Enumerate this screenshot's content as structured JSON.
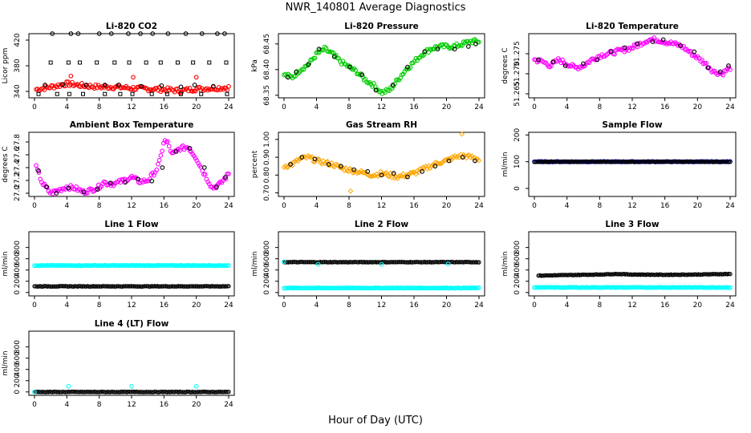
{
  "page": {
    "title": "NWR_140801  Average Diagnostics",
    "xlabel": "Hour of Day (UTC)"
  },
  "colors": {
    "black": "#000000",
    "red": "#ff0000",
    "green": "#00cc00",
    "magenta": "#ff00ff",
    "orange": "#ffa500",
    "blue": "#0000ff",
    "cyan": "#00ffff"
  },
  "chart_data": [
    {
      "type": "scatter",
      "title": "Li-820 CO2",
      "ylabel": "Licor ppm",
      "xlim": [
        0,
        24
      ],
      "ylim": [
        330,
        430
      ],
      "xticks": [
        0,
        4,
        8,
        12,
        16,
        20,
        24
      ],
      "xtick_labels": [
        "0",
        "4",
        "8",
        "12",
        "16",
        "20",
        "24"
      ],
      "yticks": [
        340,
        380,
        420
      ],
      "ytick_labels": [
        "340",
        "380",
        "420"
      ],
      "series": [
        {
          "color": "red",
          "marker": "circle",
          "dense": true,
          "x": [
            0.2,
            2,
            4,
            6,
            8,
            10,
            12,
            14,
            16,
            18,
            20,
            22,
            24
          ],
          "y": [
            343,
            347,
            352,
            349,
            347,
            347,
            345,
            344,
            343,
            341,
            344,
            345,
            346
          ]
        },
        {
          "color": "red",
          "marker": "circle",
          "x": [
            4.5,
            12.2,
            20
          ],
          "y": [
            364,
            362,
            362
          ]
        },
        {
          "color": "black",
          "marker": "circle",
          "x": [
            2.2,
            4.5,
            5.4,
            8.0,
            9.5,
            11.6,
            13.1,
            14.6,
            16.5,
            18.7,
            20.7,
            22.6,
            23.5
          ],
          "y": [
            430,
            430,
            430,
            430,
            430,
            430,
            430,
            430,
            430,
            430,
            430,
            430,
            430
          ]
        },
        {
          "color": "black",
          "marker": "square",
          "x": [
            2.0,
            4.2,
            5.6,
            7.7,
            9.9,
            11.7,
            13.8,
            15.6,
            17.7,
            19.6,
            21.6,
            23.7
          ],
          "y": [
            385,
            385,
            385,
            385,
            385,
            385,
            385,
            385,
            385,
            385,
            385,
            385
          ]
        },
        {
          "color": "black",
          "marker": "circle",
          "x": [
            1.3,
            3.5,
            6.4,
            8.7,
            10.4,
            13.2,
            15.7,
            18.1,
            19.8,
            22.1
          ],
          "y": [
            350,
            351,
            350,
            350,
            350,
            348,
            349,
            347,
            350,
            348
          ]
        },
        {
          "color": "black",
          "marker": "square",
          "x": [
            0.5,
            2.8,
            4.3,
            6.0,
            8.7,
            10.6,
            12.1,
            14.5,
            16.4,
            18.1,
            20.6,
            23.8
          ],
          "y": [
            336,
            336,
            336,
            336,
            336,
            336,
            336,
            336,
            336,
            336,
            336,
            336
          ]
        }
      ]
    },
    {
      "type": "scatter",
      "title": "Li-820 Pressure",
      "ylabel": "kPa",
      "xlim": [
        0,
        24
      ],
      "ylim": [
        68.345,
        68.47
      ],
      "xticks": [
        0,
        4,
        8,
        12,
        16,
        20,
        24
      ],
      "xtick_labels": [
        "0",
        "4",
        "8",
        "12",
        "16",
        "20",
        "24"
      ],
      "yticks": [
        68.35,
        68.4,
        68.45
      ],
      "ytick_labels": [
        "68.35",
        "68.40",
        "68.45"
      ],
      "series": [
        {
          "color": "green",
          "marker": "circle",
          "dense": true,
          "x": [
            0,
            1,
            2,
            3,
            4,
            5,
            6,
            7,
            8,
            9,
            10,
            11,
            12,
            13,
            14,
            15,
            16,
            17,
            18,
            19,
            20,
            21,
            22,
            23,
            24
          ],
          "y": [
            68.39,
            68.385,
            68.4,
            68.41,
            68.43,
            68.44,
            68.43,
            68.415,
            68.405,
            68.395,
            68.38,
            68.37,
            68.355,
            68.36,
            68.38,
            68.4,
            68.415,
            68.43,
            68.44,
            68.445,
            68.445,
            68.445,
            68.45,
            68.455,
            68.455
          ]
        },
        {
          "color": "black",
          "marker": "circle",
          "x": [
            0.5,
            1.5,
            3.0,
            4.3,
            6.2,
            8.1,
            9.6,
            11.3,
            13.4,
            15.2,
            17.3,
            18.9,
            21.0,
            22.7,
            23.6
          ],
          "y": [
            68.385,
            68.395,
            68.41,
            68.44,
            68.425,
            68.405,
            68.39,
            68.36,
            68.37,
            68.405,
            68.435,
            68.44,
            68.44,
            68.445,
            68.45
          ]
        }
      ]
    },
    {
      "type": "scatter",
      "title": "Li-820 Temperature",
      "ylabel": "degrees C",
      "xlim": [
        0,
        24
      ],
      "ylim": [
        51.264,
        51.28
      ],
      "xticks": [
        0,
        4,
        8,
        12,
        16,
        20,
        24
      ],
      "xtick_labels": [
        "0",
        "4",
        "8",
        "12",
        "16",
        "20",
        "24"
      ],
      "yticks": [
        51.265,
        51.27,
        51.275
      ],
      "ytick_labels": [
        "51.265",
        "51.270",
        "51.275"
      ],
      "series": [
        {
          "color": "magenta",
          "marker": "circle",
          "dense": true,
          "x": [
            0,
            1,
            2,
            3,
            4,
            5,
            6,
            7,
            8,
            9,
            10,
            11,
            12,
            13,
            14,
            15,
            16,
            17,
            18,
            19,
            20,
            21,
            22,
            23,
            24
          ],
          "y": [
            51.2735,
            51.273,
            51.272,
            51.2735,
            51.2725,
            51.2715,
            51.272,
            51.2735,
            51.2745,
            51.275,
            51.2755,
            51.276,
            51.2765,
            51.2775,
            51.2785,
            51.2785,
            51.278,
            51.2775,
            51.277,
            51.2755,
            51.274,
            51.2725,
            51.2705,
            51.27,
            51.2715
          ]
        },
        {
          "color": "black",
          "marker": "circle",
          "x": [
            0.5,
            2.3,
            3.8,
            6.0,
            7.7,
            9.4,
            11.1,
            12.6,
            14.5,
            15.8,
            17.9,
            19.6,
            21.3,
            22.8,
            23.8
          ],
          "y": [
            51.2735,
            51.273,
            51.272,
            51.2725,
            51.2735,
            51.2755,
            51.2765,
            51.2775,
            51.278,
            51.2785,
            51.277,
            51.2755,
            51.2715,
            51.2705,
            51.272
          ]
        }
      ]
    },
    {
      "type": "scatter",
      "title": "Ambient Box Temperature",
      "ylabel": "degrees C",
      "xlim": [
        0,
        24
      ],
      "ylim": [
        26.95,
        27.95
      ],
      "xticks": [
        0,
        4,
        8,
        12,
        16,
        20,
        24
      ],
      "xtick_labels": [
        "0",
        "4",
        "8",
        "12",
        "16",
        "20",
        "24"
      ],
      "yticks": [
        27.0,
        27.2,
        27.4,
        27.6,
        27.8
      ],
      "ytick_labels": [
        "27.0",
        "27.2",
        "27.4",
        "27.6",
        "27.8"
      ],
      "series": [
        {
          "color": "magenta",
          "marker": "circle",
          "dense": true,
          "x": [
            0.2,
            1.0,
            2.0,
            3.0,
            4.0,
            5.0,
            6.0,
            7.0,
            8.0,
            8.5,
            9.0,
            10.0,
            11.0,
            12.0,
            13.0,
            14.0,
            15.0,
            15.5,
            16.0,
            16.5,
            17.0,
            18.0,
            19.0,
            20.0,
            21.0,
            22.0,
            23.0,
            24.0
          ],
          "y": [
            27.4,
            27.15,
            27.0,
            27.05,
            27.1,
            27.08,
            27.02,
            27.05,
            27.1,
            27.18,
            27.15,
            27.15,
            27.2,
            27.25,
            27.18,
            27.2,
            27.35,
            27.5,
            27.82,
            27.78,
            27.6,
            27.7,
            27.72,
            27.55,
            27.3,
            27.08,
            27.15,
            27.3
          ]
        },
        {
          "color": "black",
          "marker": "circle",
          "x": [
            0.5,
            1.5,
            2.7,
            4.2,
            6.1,
            7.8,
            9.4,
            11.2,
            12.8,
            14.5,
            15.8,
            17.5,
            19.2,
            21.0,
            22.5,
            23.6
          ],
          "y": [
            27.35,
            27.1,
            27.0,
            27.08,
            27.02,
            27.06,
            27.16,
            27.17,
            27.22,
            27.19,
            27.4,
            27.65,
            27.7,
            27.4,
            27.1,
            27.25
          ]
        }
      ]
    },
    {
      "type": "scatter",
      "title": "Gas Stream RH",
      "ylabel": "percent",
      "xlim": [
        0,
        24
      ],
      "ylim": [
        0.68,
        1.04
      ],
      "xticks": [
        0,
        4,
        8,
        12,
        16,
        20,
        24
      ],
      "xtick_labels": [
        "0",
        "4",
        "8",
        "12",
        "16",
        "20",
        "24"
      ],
      "yticks": [
        0.7,
        0.8,
        0.9,
        1.0
      ],
      "ytick_labels": [
        "0.70",
        "0.80",
        "0.90",
        "1.00"
      ],
      "series": [
        {
          "color": "orange",
          "marker": "diamond",
          "dense": true,
          "x": [
            0,
            1,
            2,
            3,
            4,
            5,
            6,
            7,
            8,
            9,
            10,
            11,
            12,
            13,
            14,
            15,
            16,
            17,
            18,
            19,
            20,
            21,
            22,
            23,
            24
          ],
          "y": [
            0.85,
            0.86,
            0.89,
            0.9,
            0.88,
            0.87,
            0.86,
            0.84,
            0.83,
            0.82,
            0.81,
            0.8,
            0.81,
            0.8,
            0.79,
            0.8,
            0.81,
            0.83,
            0.85,
            0.87,
            0.88,
            0.9,
            0.91,
            0.9,
            0.89
          ]
        },
        {
          "color": "orange",
          "marker": "diamond",
          "x": [
            8.2,
            21.9
          ],
          "y": [
            0.71,
            1.03
          ]
        },
        {
          "color": "black",
          "marker": "circle",
          "x": [
            0.8,
            2.2,
            3.8,
            5.5,
            7.0,
            8.6,
            10.3,
            12.0,
            13.5,
            15.2,
            17.0,
            18.6,
            20.3,
            22.0,
            23.5
          ],
          "y": [
            0.86,
            0.9,
            0.89,
            0.86,
            0.85,
            0.83,
            0.82,
            0.8,
            0.81,
            0.79,
            0.82,
            0.85,
            0.88,
            0.9,
            0.88
          ]
        }
      ]
    },
    {
      "type": "scatter",
      "title": "Sample Flow",
      "ylabel": "ml/min",
      "xlim": [
        0,
        24
      ],
      "ylim": [
        -30,
        210
      ],
      "xticks": [
        0,
        4,
        8,
        12,
        16,
        20,
        24
      ],
      "xtick_labels": [
        "0",
        "4",
        "8",
        "12",
        "16",
        "20",
        "24"
      ],
      "yticks": [
        0,
        100,
        200
      ],
      "ytick_labels": [
        "0",
        "100",
        "200"
      ],
      "series": [
        {
          "color": "blue",
          "marker": "circle",
          "dense": true,
          "x": [
            0,
            24
          ],
          "y": [
            100,
            100
          ]
        },
        {
          "color": "black",
          "marker": "circle",
          "dense": true,
          "x": [
            0,
            24
          ],
          "y": [
            100,
            100
          ]
        }
      ]
    },
    {
      "type": "scatter",
      "title": "Line 1 Flow",
      "ylabel": "ml/min",
      "xlim": [
        0,
        24
      ],
      "ylim": [
        -60,
        1080
      ],
      "xticks": [
        0,
        4,
        8,
        12,
        16,
        20,
        24
      ],
      "xtick_labels": [
        "0",
        "4",
        "8",
        "12",
        "16",
        "20",
        "24"
      ],
      "yticks": [
        0,
        200,
        400,
        600,
        800
      ],
      "ytick_labels": [
        "0",
        "200",
        "400",
        "600",
        "800"
      ],
      "series": [
        {
          "color": "cyan",
          "marker": "circle",
          "dense": true,
          "x": [
            0,
            24
          ],
          "y": [
            480,
            480
          ]
        },
        {
          "color": "black",
          "marker": "circle",
          "dense": true,
          "x": [
            0,
            24
          ],
          "y": [
            110,
            110
          ]
        }
      ]
    },
    {
      "type": "scatter",
      "title": "Line 2 Flow",
      "ylabel": "ml/min",
      "xlim": [
        0,
        24
      ],
      "ylim": [
        -60,
        1080
      ],
      "xticks": [
        0,
        4,
        8,
        12,
        16,
        20,
        24
      ],
      "xtick_labels": [
        "0",
        "4",
        "8",
        "12",
        "16",
        "20",
        "24"
      ],
      "yticks": [
        0,
        200,
        400,
        600,
        800
      ],
      "ytick_labels": [
        "0",
        "200",
        "400",
        "600",
        "800"
      ],
      "series": [
        {
          "color": "cyan",
          "marker": "circle",
          "dense": true,
          "x": [
            0,
            24
          ],
          "y": [
            80,
            80
          ]
        },
        {
          "color": "black",
          "marker": "circle",
          "dense": true,
          "x": [
            0,
            24
          ],
          "y": [
            540,
            540
          ]
        },
        {
          "color": "cyan",
          "marker": "circle",
          "x": [
            0,
            4.2,
            12.0,
            20.2
          ],
          "y": [
            545,
            500,
            500,
            510
          ]
        }
      ]
    },
    {
      "type": "scatter",
      "title": "Line 3 Flow",
      "ylabel": "ml/min",
      "xlim": [
        0,
        24
      ],
      "ylim": [
        -60,
        1080
      ],
      "xticks": [
        0,
        4,
        8,
        12,
        16,
        20,
        24
      ],
      "xtick_labels": [
        "0",
        "4",
        "8",
        "12",
        "16",
        "20",
        "24"
      ],
      "yticks": [
        0,
        200,
        400,
        600,
        800
      ],
      "ytick_labels": [
        "0",
        "200",
        "400",
        "600",
        "800"
      ],
      "series": [
        {
          "color": "cyan",
          "marker": "circle",
          "dense": true,
          "x": [
            0,
            24
          ],
          "y": [
            90,
            90
          ]
        },
        {
          "color": "black",
          "marker": "circle",
          "dense": true,
          "x": [
            0.5,
            4,
            8,
            10,
            12,
            16,
            20,
            24
          ],
          "y": [
            300,
            310,
            320,
            330,
            320,
            315,
            320,
            330
          ]
        }
      ]
    },
    {
      "type": "scatter",
      "title": "Line 4 (LT) Flow",
      "ylabel": "ml/min",
      "xlim": [
        0,
        24
      ],
      "ylim": [
        -60,
        1080
      ],
      "xticks": [
        0,
        4,
        8,
        12,
        16,
        20,
        24
      ],
      "xtick_labels": [
        "0",
        "4",
        "8",
        "12",
        "16",
        "20",
        "24"
      ],
      "yticks": [
        0,
        200,
        400,
        600,
        800
      ],
      "ytick_labels": [
        "0",
        "200",
        "400",
        "600",
        "800"
      ],
      "series": [
        {
          "color": "black",
          "marker": "circle",
          "dense": true,
          "x": [
            0,
            24
          ],
          "y": [
            0,
            0
          ]
        },
        {
          "color": "cyan",
          "marker": "circle",
          "x": [
            0,
            4.2,
            12.0,
            20.0
          ],
          "y": [
            0,
            100,
            100,
            100
          ]
        }
      ]
    }
  ]
}
